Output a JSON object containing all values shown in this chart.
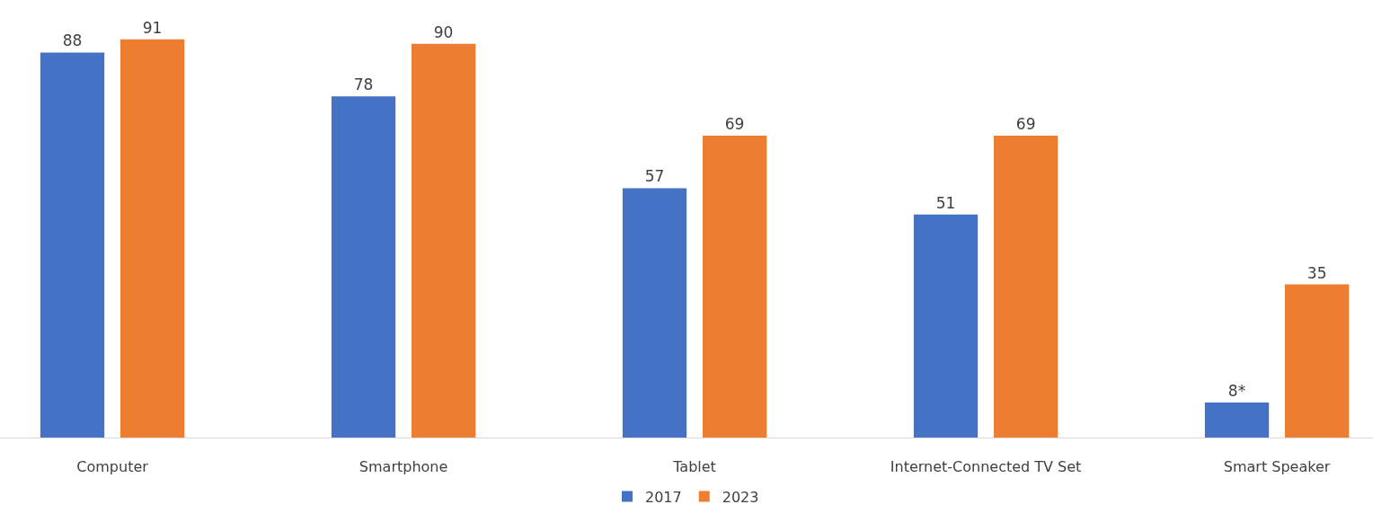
{
  "chart_data": {
    "type": "bar",
    "categories": [
      "Computer",
      "Smartphone",
      "Tablet",
      "Internet-Connected TV Set",
      "Smart Speaker"
    ],
    "series": [
      {
        "name": "2017",
        "color": "#4472c4",
        "values": [
          88,
          78,
          57,
          51,
          8
        ],
        "value_labels": [
          "88",
          "78",
          "57",
          "51",
          "8*"
        ]
      },
      {
        "name": "2023",
        "color": "#ed7d31",
        "values": [
          91,
          90,
          69,
          69,
          35
        ],
        "value_labels": [
          "91",
          "90",
          "69",
          "69",
          "35"
        ]
      }
    ],
    "ylim": [
      0,
      100
    ],
    "tick_labels": "x",
    "legend": "bottom"
  }
}
